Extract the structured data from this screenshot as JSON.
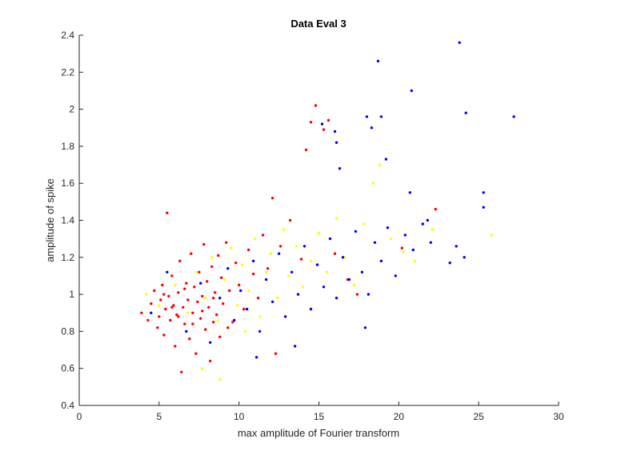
{
  "chart_data": {
    "type": "scatter",
    "title": "Data Eval 3",
    "xlabel": "max amplitude of Fourier transform",
    "ylabel": "amplitude of spike",
    "xlim": [
      0,
      30
    ],
    "ylim": [
      0.4,
      2.4
    ],
    "xticks": [
      "0",
      "5",
      "10",
      "15",
      "20",
      "25",
      "30"
    ],
    "yticks": [
      "0.4",
      "0.6",
      "0.8",
      "1",
      "1.2",
      "1.4",
      "1.6",
      "1.8",
      "2",
      "2.2",
      "2.4"
    ],
    "grid": false,
    "legend": "none",
    "series": [
      {
        "color": "#ff0000",
        "points": [
          [
            3.9,
            0.9
          ],
          [
            4.3,
            0.86
          ],
          [
            4.5,
            0.95
          ],
          [
            4.7,
            1.02
          ],
          [
            4.9,
            0.82
          ],
          [
            5.0,
            0.88
          ],
          [
            5.1,
            0.97
          ],
          [
            5.2,
            1.05
          ],
          [
            5.3,
            0.78
          ],
          [
            5.4,
            0.92
          ],
          [
            5.5,
            1.44
          ],
          [
            5.6,
            0.99
          ],
          [
            5.7,
            0.86
          ],
          [
            5.8,
            1.1
          ],
          [
            5.9,
            0.94
          ],
          [
            6.0,
            0.72
          ],
          [
            6.1,
            0.89
          ],
          [
            6.2,
            1.01
          ],
          [
            6.3,
            1.18
          ],
          [
            6.4,
            0.58
          ],
          [
            6.5,
            0.93
          ],
          [
            6.6,
            0.84
          ],
          [
            6.7,
            1.06
          ],
          [
            6.8,
            0.97
          ],
          [
            6.9,
            0.76
          ],
          [
            7.0,
            1.22
          ],
          [
            7.1,
            0.9
          ],
          [
            7.2,
            1.04
          ],
          [
            7.3,
            0.68
          ],
          [
            7.4,
            0.96
          ],
          [
            7.5,
            1.12
          ],
          [
            7.6,
            0.87
          ],
          [
            7.7,
            0.99
          ],
          [
            7.8,
            1.27
          ],
          [
            7.9,
            0.81
          ],
          [
            8.0,
            1.07
          ],
          [
            8.1,
            0.93
          ],
          [
            8.2,
            0.64
          ],
          [
            8.3,
            1.15
          ],
          [
            8.4,
            0.98
          ],
          [
            8.5,
            1.01
          ],
          [
            8.6,
            0.89
          ],
          [
            8.7,
            1.21
          ],
          [
            8.8,
            0.77
          ],
          [
            8.9,
            1.09
          ],
          [
            9.0,
            0.95
          ],
          [
            9.2,
            1.28
          ],
          [
            9.4,
            1.02
          ],
          [
            9.6,
            0.85
          ],
          [
            9.8,
            1.17
          ],
          [
            10.0,
            1.05
          ],
          [
            10.3,
            0.92
          ],
          [
            10.6,
            1.24
          ],
          [
            10.9,
            1.11
          ],
          [
            11.2,
            0.98
          ],
          [
            11.5,
            1.32
          ],
          [
            11.8,
            1.14
          ],
          [
            12.1,
            1.52
          ],
          [
            12.6,
            1.26
          ],
          [
            13.2,
            1.4
          ],
          [
            13.9,
            1.19
          ],
          [
            14.2,
            1.78
          ],
          [
            14.5,
            1.93
          ],
          [
            14.8,
            2.02
          ],
          [
            15.3,
            1.89
          ],
          [
            15.6,
            1.94
          ],
          [
            16.8,
            1.08
          ],
          [
            17.4,
            1.0
          ],
          [
            20.2,
            1.25
          ],
          [
            22.3,
            1.46
          ],
          [
            5.3,
            1.0
          ],
          [
            5.8,
            0.93
          ],
          [
            6.2,
            0.88
          ],
          [
            6.6,
            1.03
          ],
          [
            7.1,
            0.84
          ],
          [
            7.7,
            0.91
          ],
          [
            8.4,
            0.85
          ],
          [
            9.3,
            0.82
          ],
          [
            12.3,
            0.68
          ],
          [
            16.0,
            1.22
          ]
        ]
      },
      {
        "color": "#ffff00",
        "points": [
          [
            4.2,
            1.0
          ],
          [
            5.0,
            0.94
          ],
          [
            6.0,
            1.05
          ],
          [
            6.8,
            0.9
          ],
          [
            7.3,
            1.12
          ],
          [
            7.9,
            0.98
          ],
          [
            8.3,
            1.2
          ],
          [
            8.7,
            0.86
          ],
          [
            9.1,
            1.08
          ],
          [
            9.5,
            1.25
          ],
          [
            9.9,
            0.94
          ],
          [
            10.2,
            1.16
          ],
          [
            10.6,
            1.02
          ],
          [
            11.0,
            1.3
          ],
          [
            11.3,
            0.88
          ],
          [
            11.7,
            1.12
          ],
          [
            12.0,
            1.22
          ],
          [
            12.4,
            0.98
          ],
          [
            12.8,
            1.35
          ],
          [
            13.1,
            1.1
          ],
          [
            13.6,
            1.26
          ],
          [
            14.0,
            1.04
          ],
          [
            14.5,
            1.18
          ],
          [
            15.0,
            1.33
          ],
          [
            15.5,
            1.12
          ],
          [
            16.1,
            1.41
          ],
          [
            16.6,
            1.2
          ],
          [
            17.2,
            1.05
          ],
          [
            17.8,
            1.38
          ],
          [
            18.4,
            1.6
          ],
          [
            18.8,
            1.7
          ],
          [
            19.5,
            1.3
          ],
          [
            20.3,
            1.23
          ],
          [
            21.0,
            1.18
          ],
          [
            22.1,
            1.35
          ],
          [
            25.8,
            1.32
          ],
          [
            8.8,
            0.54
          ],
          [
            7.7,
            0.6
          ],
          [
            10.4,
            0.8
          ],
          [
            12.9,
            0.88
          ]
        ]
      },
      {
        "color": "#0000ff",
        "points": [
          [
            4.5,
            0.9
          ],
          [
            5.5,
            1.12
          ],
          [
            6.7,
            0.8
          ],
          [
            7.6,
            1.06
          ],
          [
            8.2,
            0.74
          ],
          [
            8.8,
            0.98
          ],
          [
            9.3,
            1.14
          ],
          [
            9.7,
            0.86
          ],
          [
            10.1,
            1.02
          ],
          [
            10.5,
            0.92
          ],
          [
            10.9,
            1.18
          ],
          [
            11.3,
            0.8
          ],
          [
            11.7,
            1.08
          ],
          [
            12.1,
            0.96
          ],
          [
            12.5,
            1.22
          ],
          [
            12.9,
            0.88
          ],
          [
            13.3,
            1.12
          ],
          [
            13.7,
            1.0
          ],
          [
            14.1,
            1.26
          ],
          [
            14.5,
            0.92
          ],
          [
            14.9,
            1.16
          ],
          [
            15.3,
            1.04
          ],
          [
            15.7,
            1.3
          ],
          [
            16.1,
            0.98
          ],
          [
            16.5,
            1.2
          ],
          [
            16.9,
            1.08
          ],
          [
            17.3,
            1.34
          ],
          [
            17.7,
            1.12
          ],
          [
            18.1,
            1.0
          ],
          [
            18.5,
            1.28
          ],
          [
            18.9,
            1.18
          ],
          [
            19.3,
            1.36
          ],
          [
            19.8,
            1.1
          ],
          [
            20.4,
            1.32
          ],
          [
            20.9,
            1.24
          ],
          [
            21.5,
            1.38
          ],
          [
            22.0,
            1.28
          ],
          [
            23.2,
            1.17
          ],
          [
            23.6,
            1.26
          ],
          [
            24.1,
            1.2
          ],
          [
            15.2,
            1.92
          ],
          [
            16.0,
            1.88
          ],
          [
            16.3,
            1.68
          ],
          [
            16.1,
            1.82
          ],
          [
            18.0,
            1.96
          ],
          [
            18.3,
            1.9
          ],
          [
            18.9,
            1.96
          ],
          [
            19.2,
            1.73
          ],
          [
            18.7,
            2.26
          ],
          [
            20.8,
            2.1
          ],
          [
            20.7,
            1.55
          ],
          [
            21.8,
            1.4
          ],
          [
            23.8,
            2.36
          ],
          [
            24.2,
            1.98
          ],
          [
            25.3,
            1.55
          ],
          [
            25.3,
            1.47
          ],
          [
            27.2,
            1.96
          ],
          [
            17.9,
            0.82
          ],
          [
            13.5,
            0.72
          ],
          [
            11.1,
            0.66
          ]
        ]
      }
    ]
  }
}
